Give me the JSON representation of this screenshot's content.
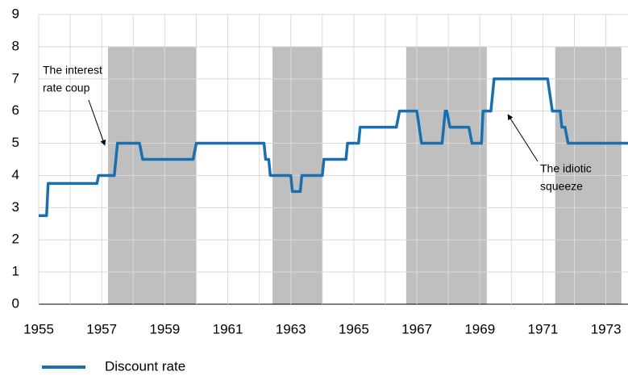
{
  "chart_data": {
    "type": "line",
    "x": [
      1955,
      1955.25,
      1955.3,
      1956.85,
      1956.9,
      1957.4,
      1957.5,
      1958.2,
      1958.3,
      1959.9,
      1960,
      1962.15,
      1962.2,
      1962.3,
      1962.35,
      1963,
      1963.05,
      1963.3,
      1963.35,
      1964,
      1964.05,
      1964.75,
      1964.8,
      1965.15,
      1965.2,
      1966.35,
      1966.45,
      1967,
      1967.15,
      1967.8,
      1967.9,
      1967.95,
      1968.05,
      1968.65,
      1968.75,
      1969.05,
      1969.1,
      1969.35,
      1969.45,
      1971.15,
      1971.3,
      1971.55,
      1971.6,
      1971.7,
      1971.8,
      1973.7
    ],
    "series": [
      {
        "name": "Discount rate",
        "color": "#1a6fb0",
        "values": [
          2.75,
          2.75,
          3.75,
          3.75,
          4,
          4,
          5,
          5,
          4.5,
          4.5,
          5,
          5,
          4.5,
          4.5,
          4,
          4,
          3.5,
          3.5,
          4,
          4,
          4.5,
          4.5,
          5,
          5,
          5.5,
          5.5,
          6,
          6,
          5,
          5,
          6,
          6,
          5.5,
          5.5,
          5,
          5,
          6,
          6,
          7,
          7,
          6,
          6,
          5.5,
          5.5,
          5,
          5
        ]
      }
    ],
    "shaded_periods": [
      [
        1957.2,
        1960.0
      ],
      [
        1962.42,
        1964.0
      ],
      [
        1966.66,
        1969.22
      ],
      [
        1971.39,
        1973.49
      ]
    ],
    "shade_top": 8,
    "shade_color": "#bfbfbf",
    "xlim": [
      1955,
      1973.7
    ],
    "xticks": [
      1955,
      1957,
      1959,
      1961,
      1963,
      1965,
      1967,
      1969,
      1971,
      1973
    ],
    "xminor_ticks": [
      1956,
      1958,
      1960,
      1962,
      1964,
      1966,
      1968,
      1970,
      1972
    ],
    "ylim": [
      0,
      9
    ],
    "yticks": [
      0,
      1,
      2,
      3,
      4,
      5,
      6,
      7,
      8,
      9
    ],
    "grid": true,
    "legend": "bottom",
    "annotations": [
      {
        "lines": [
          "The interest",
          "rate coup"
        ]
      },
      {
        "lines": [
          "The idiotic",
          "squeeze"
        ]
      }
    ]
  }
}
